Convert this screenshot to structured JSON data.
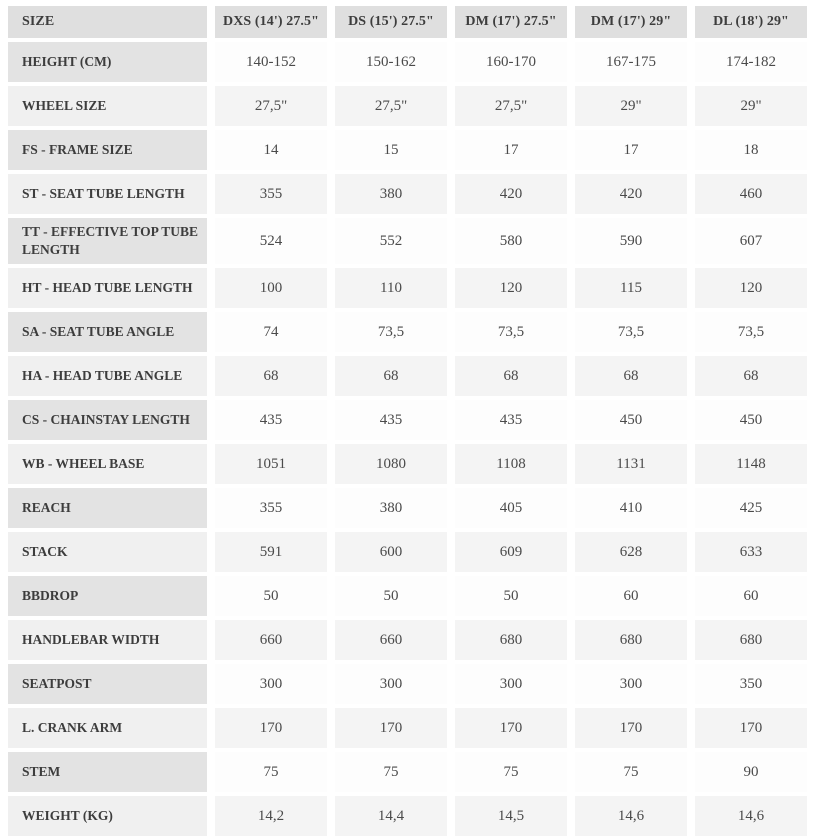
{
  "table": {
    "columns": [
      "SIZE",
      "DXS (14') 27.5\"",
      "DS (15') 27.5\"",
      "DM (17') 27.5\"",
      "DM (17') 29\"",
      "DL (18') 29\""
    ],
    "rows": [
      {
        "label": "HEIGHT (CM)",
        "values": [
          "140-152",
          "150-162",
          "160-170",
          "167-175",
          "174-182"
        ]
      },
      {
        "label": "WHEEL SIZE",
        "values": [
          "27,5\"",
          "27,5\"",
          "27,5\"",
          "29\"",
          "29\""
        ]
      },
      {
        "label": "FS - FRAME SIZE",
        "values": [
          "14",
          "15",
          "17",
          "17",
          "18"
        ]
      },
      {
        "label": "ST - SEAT TUBE LENGTH",
        "values": [
          "355",
          "380",
          "420",
          "420",
          "460"
        ]
      },
      {
        "label": "TT - EFFECTIVE TOP TUBE LENGTH",
        "values": [
          "524",
          "552",
          "580",
          "590",
          "607"
        ]
      },
      {
        "label": "HT - HEAD TUBE LENGTH",
        "values": [
          "100",
          "110",
          "120",
          "115",
          "120"
        ]
      },
      {
        "label": "SA - SEAT TUBE ANGLE",
        "values": [
          "74",
          "73,5",
          "73,5",
          "73,5",
          "73,5"
        ]
      },
      {
        "label": "HA - HEAD TUBE ANGLE",
        "values": [
          "68",
          "68",
          "68",
          "68",
          "68"
        ]
      },
      {
        "label": "CS - CHAINSTAY LENGTH",
        "values": [
          "435",
          "435",
          "435",
          "450",
          "450"
        ]
      },
      {
        "label": "WB - WHEEL BASE",
        "values": [
          "1051",
          "1080",
          "1108",
          "1131",
          "1148"
        ]
      },
      {
        "label": "REACH",
        "values": [
          "355",
          "380",
          "405",
          "410",
          "425"
        ]
      },
      {
        "label": "STACK",
        "values": [
          "591",
          "600",
          "609",
          "628",
          "633"
        ]
      },
      {
        "label": "BBDROP",
        "values": [
          "50",
          "50",
          "50",
          "60",
          "60"
        ]
      },
      {
        "label": "HANDLEBAR WIDTH",
        "values": [
          "660",
          "660",
          "680",
          "680",
          "680"
        ]
      },
      {
        "label": "SEATPOST",
        "values": [
          "300",
          "300",
          "300",
          "300",
          "350"
        ]
      },
      {
        "label": "L. CRANK ARM",
        "values": [
          "170",
          "170",
          "170",
          "170",
          "170"
        ]
      },
      {
        "label": "STEM",
        "values": [
          "75",
          "75",
          "75",
          "75",
          "90"
        ]
      },
      {
        "label": "WEIGHT (KG)",
        "values": [
          "14,2",
          "14,4",
          "14,5",
          "14,6",
          "14,6"
        ]
      }
    ],
    "colors": {
      "header_bg": "#dfdfdf",
      "label_odd_bg": "#e3e3e3",
      "label_even_bg": "#f0f0f0",
      "data_odd_bg": "#fdfdfd",
      "data_even_bg": "#f4f4f4",
      "label_text": "#3d3d3d",
      "data_text": "#4a4a4a"
    }
  }
}
